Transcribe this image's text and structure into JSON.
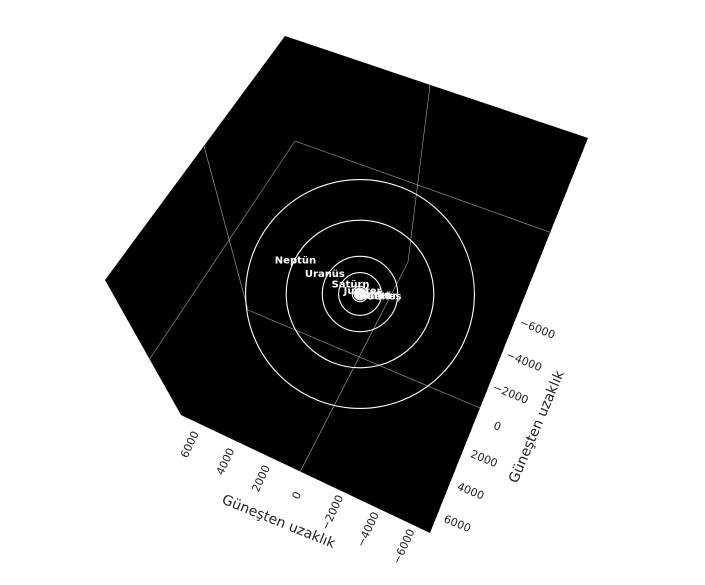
{
  "chart_data": {
    "type": "scatter",
    "subtype": "3d-orbits",
    "title": "",
    "background": "#000000",
    "line_color": "#ffffff",
    "grid": true,
    "x_axis": {
      "title": "Güneşten uzaklık",
      "range": [
        -7000,
        7000
      ],
      "ticks": [
        6000,
        4000,
        2000,
        0,
        -2000,
        -4000,
        -6000
      ],
      "tick_labels": [
        "6000",
        "4000",
        "2000",
        "0",
        "−2000",
        "−4000",
        "−6000"
      ]
    },
    "y_axis": {
      "title": "Güneşten uzaklık",
      "range": [
        -7000,
        7000
      ],
      "ticks": [
        -6000,
        -4000,
        -2000,
        0,
        2000,
        4000,
        6000
      ],
      "tick_labels": [
        "−6000",
        "−4000",
        "−2000",
        "0",
        "2000",
        "4000",
        "6000"
      ]
    },
    "sun": {
      "name": "Güneş",
      "x": 0,
      "y": 0
    },
    "orbits": [
      {
        "name": "Merkür",
        "radius": 58
      },
      {
        "name": "Venüs",
        "radius": 108
      },
      {
        "name": "Dünya",
        "radius": 150
      },
      {
        "name": "Mars",
        "radius": 228
      },
      {
        "name": "Jüpiter",
        "radius": 778
      },
      {
        "name": "Satürn",
        "radius": 1427
      },
      {
        "name": "Uranüs",
        "radius": 2871
      },
      {
        "name": "Neptün",
        "radius": 4497
      }
    ],
    "labels": [
      {
        "text": "Neptün",
        "x": 4497,
        "y": -3300
      },
      {
        "text": "Uranüs",
        "x": 2871,
        "y": -2000
      },
      {
        "text": "Satürn",
        "x": 1427,
        "y": -1000
      },
      {
        "text": "Jüpiter",
        "x": 778,
        "y": -400
      },
      {
        "text": "Mars",
        "x": 228,
        "y": -100
      },
      {
        "text": "Dünya",
        "x": 150,
        "y": 0
      },
      {
        "text": "Venüs",
        "x": 108,
        "y": 60
      },
      {
        "text": "Merkür",
        "x": 58,
        "y": 120
      },
      {
        "text": "Güneş",
        "x": -200,
        "y": 150
      }
    ]
  }
}
